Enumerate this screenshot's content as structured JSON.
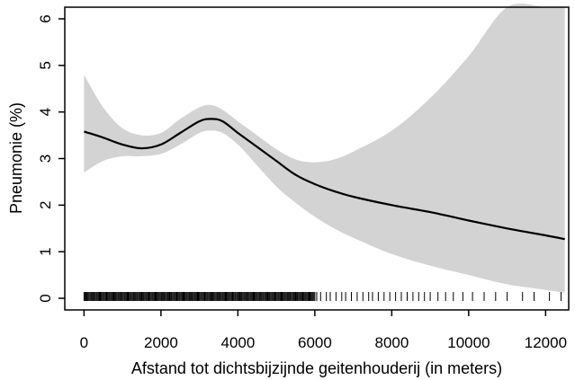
{
  "chart_data": {
    "type": "line",
    "title": "",
    "xlabel": "Afstand tot dichtsbijzijnde geitenhouderij (in meters)",
    "ylabel": "Pneumonie (%)",
    "xlim": [
      -500,
      12600
    ],
    "ylim": [
      -0.25,
      6.25
    ],
    "x_ticks": [
      0,
      2000,
      4000,
      6000,
      8000,
      10000,
      12000
    ],
    "y_ticks": [
      0,
      1,
      2,
      3,
      4,
      5,
      6
    ],
    "grid": false,
    "legend": "none",
    "colors": {
      "line": "#000000",
      "band": "#d3d3d3",
      "axis": "#000000"
    },
    "series": [
      {
        "x": [
          0,
          500,
          1000,
          1500,
          2000,
          2500,
          3000,
          3300,
          3600,
          4000,
          4500,
          5000,
          5500,
          6000,
          6500,
          7000,
          8000,
          9000,
          10000,
          11000,
          12000,
          12500
        ],
        "values": [
          3.58,
          3.45,
          3.3,
          3.22,
          3.3,
          3.55,
          3.8,
          3.85,
          3.8,
          3.55,
          3.25,
          2.95,
          2.65,
          2.45,
          2.3,
          2.18,
          2.0,
          1.85,
          1.67,
          1.5,
          1.35,
          1.27
        ],
        "lower": [
          2.7,
          2.95,
          3.05,
          3.05,
          3.1,
          3.3,
          3.55,
          3.6,
          3.55,
          3.3,
          2.85,
          2.4,
          2.05,
          1.75,
          1.5,
          1.3,
          0.95,
          0.7,
          0.5,
          0.3,
          0.18,
          0.12
        ],
        "upper": [
          4.8,
          4.1,
          3.65,
          3.5,
          3.55,
          3.85,
          4.1,
          4.15,
          4.05,
          3.8,
          3.5,
          3.2,
          2.98,
          2.92,
          2.98,
          3.15,
          3.6,
          4.3,
          5.2,
          6.25,
          6.25,
          6.25
        ]
      }
    ],
    "rug": {
      "dense_start": 0,
      "dense_end": 6000,
      "sparse_x": [
        6050,
        6150,
        6300,
        6400,
        6550,
        6700,
        6800,
        6950,
        7100,
        7250,
        7400,
        7500,
        7650,
        7800,
        7950,
        8100,
        8250,
        8400,
        8550,
        8700,
        8850,
        9000,
        9200,
        9400,
        9600,
        9850,
        10100,
        10400,
        10700,
        11000,
        11400,
        11700,
        12100,
        12400
      ]
    }
  }
}
